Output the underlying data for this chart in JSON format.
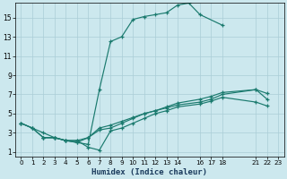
{
  "xlabel": "Humidex (Indice chaleur)",
  "background_color": "#cce8ee",
  "grid_color": "#aacdd6",
  "line_color": "#1a7a6e",
  "xlim": [
    -0.5,
    23.5
  ],
  "ylim": [
    0.5,
    16.5
  ],
  "xtick_positions": [
    0,
    1,
    2,
    3,
    4,
    5,
    6,
    7,
    8,
    9,
    10,
    11,
    12,
    13,
    14,
    16,
    17,
    18,
    21,
    22,
    23
  ],
  "xtick_labels": [
    "0",
    "1",
    "2",
    "3",
    "4",
    "5",
    "6",
    "7",
    "8",
    "9",
    "10",
    "11",
    "12",
    "13",
    "14",
    "16",
    "17",
    "18",
    "21",
    "22",
    "23"
  ],
  "ytick_positions": [
    1,
    3,
    5,
    7,
    9,
    11,
    13,
    15
  ],
  "ytick_labels": [
    "1",
    "3",
    "5",
    "7",
    "9",
    "11",
    "13",
    "15"
  ],
  "line1_x": [
    0,
    1,
    2,
    3,
    4,
    5,
    6,
    7,
    8,
    9,
    10,
    11,
    12,
    13,
    14,
    15,
    16,
    18
  ],
  "line1_y": [
    4,
    3.5,
    3,
    2.5,
    2.2,
    2,
    1.8,
    7.5,
    12.5,
    13.0,
    14.8,
    15.1,
    15.3,
    15.5,
    16.3,
    16.5,
    15.3,
    14.2
  ],
  "line2_x": [
    0,
    1,
    2,
    3,
    4,
    5,
    6,
    7,
    8,
    9,
    10,
    11,
    12,
    13,
    14,
    16,
    17,
    18,
    21,
    22
  ],
  "line2_y": [
    4,
    3.5,
    2.5,
    2.5,
    2.2,
    2.2,
    2.5,
    3.3,
    3.5,
    4.0,
    4.5,
    5.0,
    5.3,
    5.7,
    6.1,
    6.5,
    6.8,
    7.2,
    7.5,
    6.5
  ],
  "line3_x": [
    0,
    1,
    2,
    3,
    4,
    5,
    6,
    7,
    8,
    9,
    10,
    11,
    12,
    13,
    14,
    16,
    17,
    18,
    21,
    22
  ],
  "line3_y": [
    4,
    3.5,
    2.5,
    2.5,
    2.2,
    2.2,
    1.5,
    1.2,
    3.2,
    3.5,
    4.0,
    4.5,
    5.0,
    5.3,
    5.7,
    6.0,
    6.3,
    6.7,
    6.2,
    5.8
  ],
  "line4_x": [
    2,
    3,
    4,
    5,
    6,
    7,
    8,
    9,
    10,
    11,
    12,
    13,
    14,
    16,
    17,
    18,
    21,
    22
  ],
  "line4_y": [
    2.5,
    2.5,
    2.2,
    2.0,
    2.5,
    3.5,
    3.8,
    4.2,
    4.6,
    5.0,
    5.3,
    5.6,
    5.9,
    6.2,
    6.5,
    7.0,
    7.5,
    7.1
  ]
}
